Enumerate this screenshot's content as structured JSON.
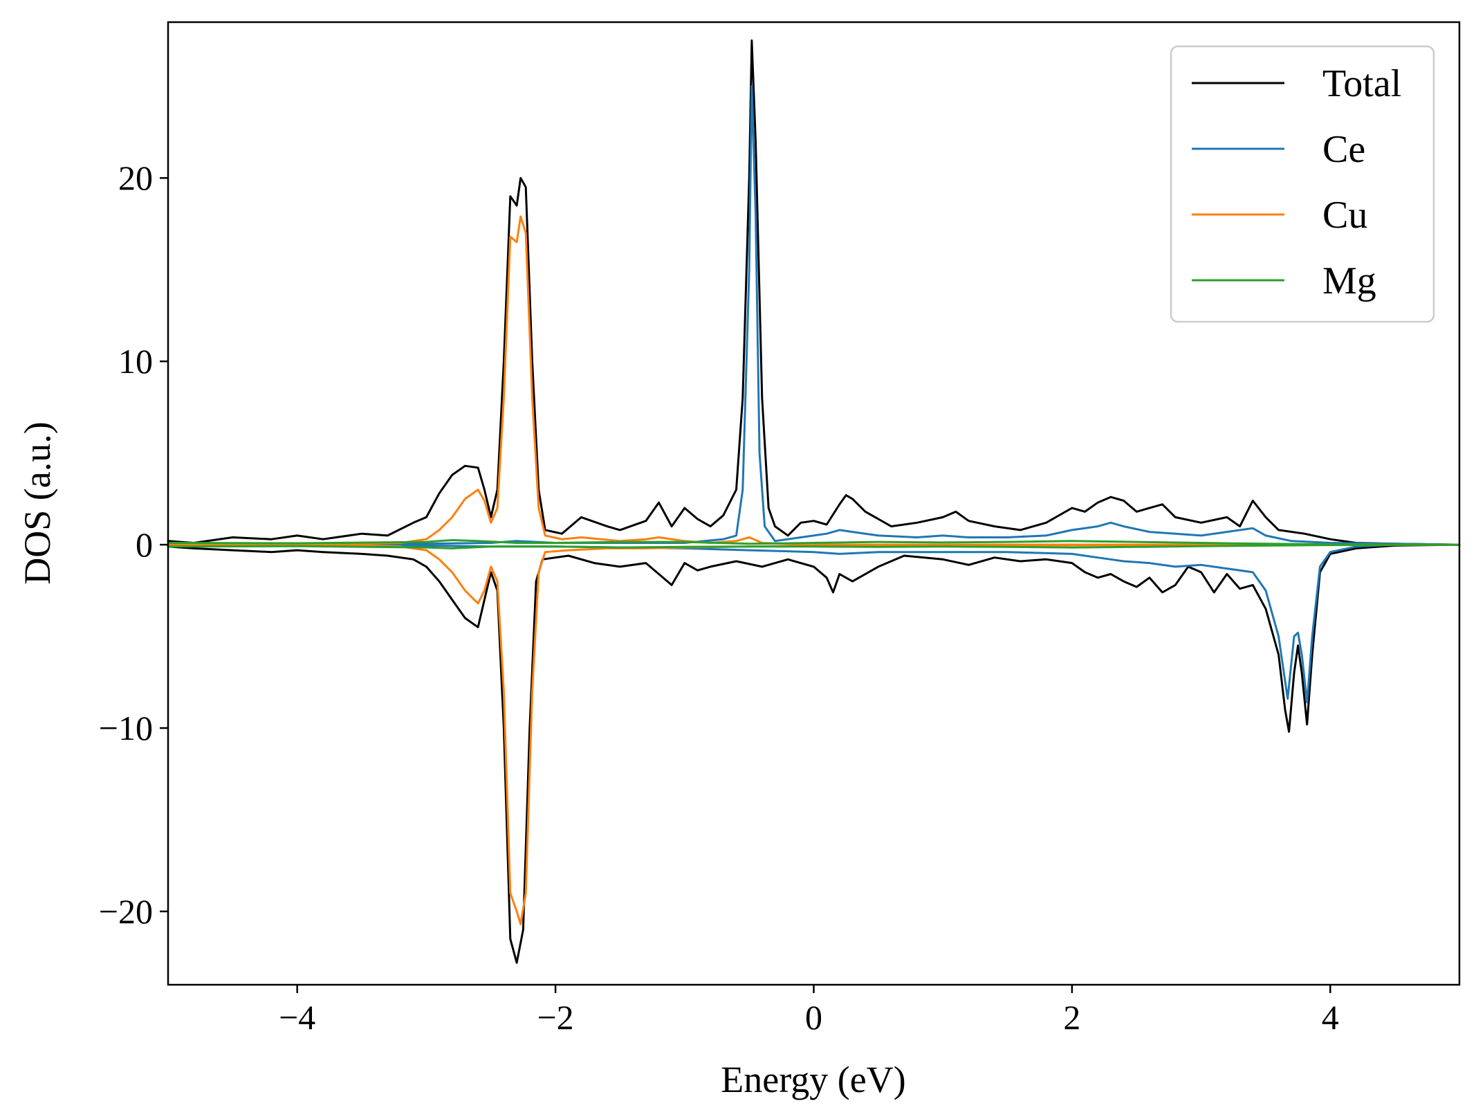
{
  "chart_data": {
    "type": "line",
    "title": "",
    "xlabel": "Energy (eV)",
    "ylabel": "DOS (a.u.)",
    "xlim": [
      -5,
      5
    ],
    "ylim": [
      -24,
      28.5
    ],
    "xticks": [
      -4,
      -2,
      0,
      2,
      4
    ],
    "yticks": [
      -20,
      -10,
      0,
      10,
      20
    ],
    "xtick_labels": [
      "−4",
      "−2",
      "0",
      "2",
      "4"
    ],
    "ytick_labels": [
      "−20",
      "−10",
      "0",
      "10",
      "20"
    ],
    "grid": false,
    "legend": "top-right",
    "series": [
      {
        "name": "Total",
        "color": "#000000",
        "up": [
          [
            -5,
            0.2
          ],
          [
            -4.8,
            0.1
          ],
          [
            -4.5,
            0.4
          ],
          [
            -4.2,
            0.3
          ],
          [
            -4,
            0.5
          ],
          [
            -3.8,
            0.3
          ],
          [
            -3.5,
            0.6
          ],
          [
            -3.3,
            0.5
          ],
          [
            -3.1,
            1.2
          ],
          [
            -3,
            1.5
          ],
          [
            -2.9,
            2.8
          ],
          [
            -2.8,
            3.8
          ],
          [
            -2.7,
            4.3
          ],
          [
            -2.6,
            4.2
          ],
          [
            -2.55,
            3
          ],
          [
            -2.5,
            1.5
          ],
          [
            -2.45,
            3
          ],
          [
            -2.4,
            10
          ],
          [
            -2.35,
            19
          ],
          [
            -2.3,
            18.5
          ],
          [
            -2.27,
            20
          ],
          [
            -2.23,
            19.5
          ],
          [
            -2.18,
            10
          ],
          [
            -2.13,
            3
          ],
          [
            -2.08,
            0.8
          ],
          [
            -1.95,
            0.6
          ],
          [
            -1.8,
            1.5
          ],
          [
            -1.6,
            1
          ],
          [
            -1.5,
            0.8
          ],
          [
            -1.3,
            1.3
          ],
          [
            -1.2,
            2.3
          ],
          [
            -1.1,
            1
          ],
          [
            -1,
            2
          ],
          [
            -0.9,
            1.4
          ],
          [
            -0.8,
            1
          ],
          [
            -0.7,
            1.6
          ],
          [
            -0.6,
            3
          ],
          [
            -0.55,
            8
          ],
          [
            -0.5,
            20
          ],
          [
            -0.48,
            27.5
          ],
          [
            -0.45,
            22
          ],
          [
            -0.4,
            8
          ],
          [
            -0.35,
            2
          ],
          [
            -0.3,
            1
          ],
          [
            -0.2,
            0.5
          ],
          [
            -0.1,
            1.2
          ],
          [
            0,
            1.3
          ],
          [
            0.1,
            1.1
          ],
          [
            0.2,
            2.2
          ],
          [
            0.25,
            2.7
          ],
          [
            0.3,
            2.5
          ],
          [
            0.4,
            1.8
          ],
          [
            0.6,
            1
          ],
          [
            0.8,
            1.2
          ],
          [
            1,
            1.5
          ],
          [
            1.1,
            1.8
          ],
          [
            1.2,
            1.3
          ],
          [
            1.4,
            1
          ],
          [
            1.6,
            0.8
          ],
          [
            1.8,
            1.2
          ],
          [
            2,
            2
          ],
          [
            2.1,
            1.8
          ],
          [
            2.2,
            2.3
          ],
          [
            2.3,
            2.6
          ],
          [
            2.4,
            2.4
          ],
          [
            2.5,
            1.8
          ],
          [
            2.6,
            2
          ],
          [
            2.7,
            2.2
          ],
          [
            2.8,
            1.5
          ],
          [
            3,
            1.2
          ],
          [
            3.2,
            1.5
          ],
          [
            3.3,
            1
          ],
          [
            3.4,
            2.4
          ],
          [
            3.5,
            1.5
          ],
          [
            3.6,
            0.8
          ],
          [
            3.8,
            0.6
          ],
          [
            4,
            0.3
          ],
          [
            4.2,
            0.1
          ],
          [
            4.5,
            0.05
          ],
          [
            5,
            0
          ]
        ],
        "down": [
          [
            -5,
            -0.1
          ],
          [
            -4.8,
            -0.2
          ],
          [
            -4.5,
            -0.3
          ],
          [
            -4.2,
            -0.4
          ],
          [
            -4,
            -0.3
          ],
          [
            -3.8,
            -0.4
          ],
          [
            -3.5,
            -0.5
          ],
          [
            -3.3,
            -0.6
          ],
          [
            -3.1,
            -0.8
          ],
          [
            -3,
            -1.2
          ],
          [
            -2.9,
            -2
          ],
          [
            -2.8,
            -3
          ],
          [
            -2.7,
            -4
          ],
          [
            -2.6,
            -4.5
          ],
          [
            -2.55,
            -3
          ],
          [
            -2.5,
            -1.5
          ],
          [
            -2.45,
            -2.5
          ],
          [
            -2.4,
            -10
          ],
          [
            -2.35,
            -21.5
          ],
          [
            -2.3,
            -22.8
          ],
          [
            -2.25,
            -21
          ],
          [
            -2.2,
            -10
          ],
          [
            -2.15,
            -2
          ],
          [
            -2.1,
            -0.8
          ],
          [
            -1.9,
            -0.6
          ],
          [
            -1.7,
            -1
          ],
          [
            -1.5,
            -1.2
          ],
          [
            -1.3,
            -1
          ],
          [
            -1.2,
            -1.6
          ],
          [
            -1.1,
            -2.2
          ],
          [
            -1,
            -1
          ],
          [
            -0.9,
            -1.4
          ],
          [
            -0.8,
            -1.2
          ],
          [
            -0.6,
            -0.9
          ],
          [
            -0.4,
            -1.2
          ],
          [
            -0.2,
            -0.8
          ],
          [
            0,
            -1.2
          ],
          [
            0.1,
            -1.8
          ],
          [
            0.15,
            -2.6
          ],
          [
            0.2,
            -1.6
          ],
          [
            0.3,
            -2
          ],
          [
            0.5,
            -1.2
          ],
          [
            0.7,
            -0.6
          ],
          [
            1,
            -0.8
          ],
          [
            1.2,
            -1.1
          ],
          [
            1.4,
            -0.7
          ],
          [
            1.6,
            -0.9
          ],
          [
            1.8,
            -0.8
          ],
          [
            2,
            -1
          ],
          [
            2.1,
            -1.5
          ],
          [
            2.2,
            -1.8
          ],
          [
            2.3,
            -1.6
          ],
          [
            2.4,
            -2
          ],
          [
            2.5,
            -2.3
          ],
          [
            2.6,
            -1.8
          ],
          [
            2.7,
            -2.6
          ],
          [
            2.8,
            -2.2
          ],
          [
            2.9,
            -1.2
          ],
          [
            3,
            -1.5
          ],
          [
            3.1,
            -2.6
          ],
          [
            3.2,
            -1.6
          ],
          [
            3.3,
            -2.4
          ],
          [
            3.4,
            -2.2
          ],
          [
            3.5,
            -3.5
          ],
          [
            3.6,
            -6
          ],
          [
            3.65,
            -9
          ],
          [
            3.68,
            -10.2
          ],
          [
            3.72,
            -7
          ],
          [
            3.75,
            -5.5
          ],
          [
            3.78,
            -7
          ],
          [
            3.82,
            -9.8
          ],
          [
            3.86,
            -6
          ],
          [
            3.92,
            -1.5
          ],
          [
            4,
            -0.5
          ],
          [
            4.2,
            -0.2
          ],
          [
            4.5,
            -0.05
          ],
          [
            5,
            0
          ]
        ]
      },
      {
        "name": "Ce",
        "color": "#1f77b4",
        "up": [
          [
            -5,
            0
          ],
          [
            -3,
            0.05
          ],
          [
            -2.5,
            0.1
          ],
          [
            -2.3,
            0.2
          ],
          [
            -2,
            0.1
          ],
          [
            -1,
            0.1
          ],
          [
            -0.7,
            0.3
          ],
          [
            -0.6,
            0.5
          ],
          [
            -0.55,
            3
          ],
          [
            -0.5,
            15
          ],
          [
            -0.48,
            25
          ],
          [
            -0.45,
            18
          ],
          [
            -0.42,
            5
          ],
          [
            -0.38,
            1
          ],
          [
            -0.3,
            0.2
          ],
          [
            -0.1,
            0.4
          ],
          [
            0,
            0.5
          ],
          [
            0.1,
            0.6
          ],
          [
            0.2,
            0.8
          ],
          [
            0.3,
            0.7
          ],
          [
            0.5,
            0.5
          ],
          [
            0.8,
            0.4
          ],
          [
            1,
            0.5
          ],
          [
            1.2,
            0.4
          ],
          [
            1.5,
            0.4
          ],
          [
            1.8,
            0.5
          ],
          [
            2,
            0.8
          ],
          [
            2.2,
            1
          ],
          [
            2.3,
            1.2
          ],
          [
            2.4,
            1
          ],
          [
            2.6,
            0.7
          ],
          [
            2.8,
            0.6
          ],
          [
            3,
            0.5
          ],
          [
            3.2,
            0.7
          ],
          [
            3.4,
            0.9
          ],
          [
            3.5,
            0.5
          ],
          [
            3.7,
            0.2
          ],
          [
            4,
            0.1
          ],
          [
            5,
            0
          ]
        ],
        "down": [
          [
            -5,
            0
          ],
          [
            -3,
            -0.05
          ],
          [
            -2.5,
            -0.1
          ],
          [
            -2,
            -0.1
          ],
          [
            -1,
            -0.2
          ],
          [
            -0.5,
            -0.3
          ],
          [
            0,
            -0.4
          ],
          [
            0.2,
            -0.5
          ],
          [
            0.5,
            -0.4
          ],
          [
            1,
            -0.4
          ],
          [
            1.5,
            -0.4
          ],
          [
            2,
            -0.5
          ],
          [
            2.2,
            -0.7
          ],
          [
            2.4,
            -0.9
          ],
          [
            2.6,
            -1
          ],
          [
            2.8,
            -1.2
          ],
          [
            3,
            -1.1
          ],
          [
            3.2,
            -1.3
          ],
          [
            3.4,
            -1.5
          ],
          [
            3.5,
            -2.5
          ],
          [
            3.6,
            -5
          ],
          [
            3.67,
            -8.4
          ],
          [
            3.72,
            -5
          ],
          [
            3.75,
            -4.8
          ],
          [
            3.78,
            -6
          ],
          [
            3.82,
            -8.6
          ],
          [
            3.86,
            -5
          ],
          [
            3.92,
            -1.2
          ],
          [
            4,
            -0.4
          ],
          [
            4.2,
            -0.1
          ],
          [
            4.5,
            0
          ],
          [
            5,
            0
          ]
        ]
      },
      {
        "name": "Cu",
        "color": "#ff7f0e",
        "up": [
          [
            -5,
            0
          ],
          [
            -3.5,
            0.05
          ],
          [
            -3.2,
            0.1
          ],
          [
            -3,
            0.3
          ],
          [
            -2.9,
            0.8
          ],
          [
            -2.8,
            1.5
          ],
          [
            -2.7,
            2.5
          ],
          [
            -2.6,
            3
          ],
          [
            -2.55,
            2.4
          ],
          [
            -2.5,
            1.2
          ],
          [
            -2.45,
            2
          ],
          [
            -2.4,
            8
          ],
          [
            -2.35,
            16.8
          ],
          [
            -2.3,
            16.5
          ],
          [
            -2.27,
            17.9
          ],
          [
            -2.23,
            17
          ],
          [
            -2.18,
            8
          ],
          [
            -2.13,
            2
          ],
          [
            -2.08,
            0.5
          ],
          [
            -1.95,
            0.3
          ],
          [
            -1.8,
            0.4
          ],
          [
            -1.5,
            0.2
          ],
          [
            -1.3,
            0.3
          ],
          [
            -1.2,
            0.4
          ],
          [
            -1,
            0.2
          ],
          [
            -0.8,
            0.1
          ],
          [
            -0.6,
            0.2
          ],
          [
            -0.5,
            0.4
          ],
          [
            -0.4,
            0.1
          ],
          [
            0,
            0
          ],
          [
            5,
            0
          ]
        ],
        "down": [
          [
            -5,
            0
          ],
          [
            -3.5,
            -0.05
          ],
          [
            -3.2,
            -0.1
          ],
          [
            -3,
            -0.3
          ],
          [
            -2.9,
            -0.8
          ],
          [
            -2.8,
            -1.5
          ],
          [
            -2.7,
            -2.5
          ],
          [
            -2.6,
            -3.2
          ],
          [
            -2.55,
            -2.5
          ],
          [
            -2.5,
            -1.2
          ],
          [
            -2.45,
            -2
          ],
          [
            -2.4,
            -8
          ],
          [
            -2.35,
            -19
          ],
          [
            -2.3,
            -20
          ],
          [
            -2.27,
            -20.7
          ],
          [
            -2.23,
            -19
          ],
          [
            -2.18,
            -8
          ],
          [
            -2.13,
            -1.5
          ],
          [
            -2.08,
            -0.4
          ],
          [
            -1.9,
            -0.3
          ],
          [
            -1.6,
            -0.2
          ],
          [
            -1.3,
            -0.2
          ],
          [
            -1,
            -0.15
          ],
          [
            -0.5,
            -0.1
          ],
          [
            0,
            -0.05
          ],
          [
            5,
            0
          ]
        ]
      },
      {
        "name": "Mg",
        "color": "#2ca02c",
        "up": [
          [
            -5,
            0.1
          ],
          [
            -4,
            0.08
          ],
          [
            -3,
            0.15
          ],
          [
            -2.8,
            0.25
          ],
          [
            -2.6,
            0.2
          ],
          [
            -2.3,
            0.1
          ],
          [
            -2,
            0.1
          ],
          [
            -1.5,
            0.15
          ],
          [
            -1,
            0.15
          ],
          [
            -0.5,
            0.05
          ],
          [
            0,
            0.1
          ],
          [
            0.5,
            0.15
          ],
          [
            1,
            0.12
          ],
          [
            1.5,
            0.15
          ],
          [
            2,
            0.2
          ],
          [
            2.5,
            0.15
          ],
          [
            3,
            0.1
          ],
          [
            3.5,
            0.05
          ],
          [
            4,
            0.02
          ],
          [
            5,
            0
          ]
        ],
        "down": [
          [
            -5,
            -0.1
          ],
          [
            -4,
            -0.08
          ],
          [
            -3,
            -0.15
          ],
          [
            -2.8,
            -0.2
          ],
          [
            -2.5,
            -0.1
          ],
          [
            -2,
            -0.1
          ],
          [
            -1.5,
            -0.15
          ],
          [
            -1,
            -0.12
          ],
          [
            -0.5,
            -0.1
          ],
          [
            0,
            -0.1
          ],
          [
            0.5,
            -0.12
          ],
          [
            1,
            -0.1
          ],
          [
            1.5,
            -0.12
          ],
          [
            2,
            -0.15
          ],
          [
            2.5,
            -0.12
          ],
          [
            3,
            -0.08
          ],
          [
            3.5,
            -0.05
          ],
          [
            4,
            -0.02
          ],
          [
            5,
            0
          ]
        ]
      }
    ]
  }
}
